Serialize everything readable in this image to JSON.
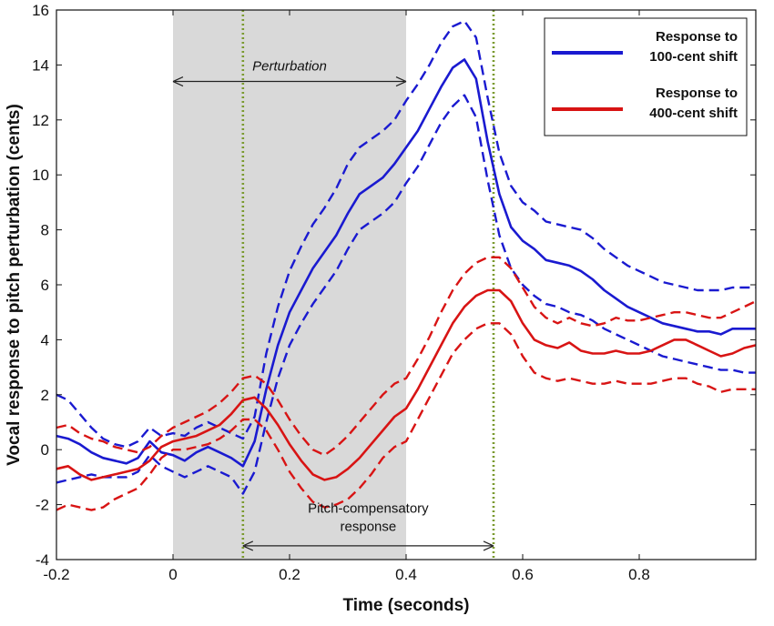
{
  "chart_data": {
    "type": "line",
    "xlabel": "Time (seconds)",
    "ylabel": "Vocal response to pitch perturbation (cents)",
    "xlim": [
      -0.2,
      1.0
    ],
    "ylim": [
      -4,
      16
    ],
    "xticks": [
      -0.2,
      0,
      0.2,
      0.4,
      0.6,
      0.8
    ],
    "xtick_labels": [
      "-0.2",
      "0",
      "0.2",
      "0.4",
      "0.6",
      "0.8"
    ],
    "yticks": [
      -4,
      -2,
      0,
      2,
      4,
      6,
      8,
      10,
      12,
      14,
      16
    ],
    "ytick_labels": [
      "-4",
      "-2",
      "0",
      "2",
      "4",
      "6",
      "8",
      "10",
      "12",
      "14",
      "16"
    ],
    "grid": false,
    "legend_position": "top-right",
    "shaded_region": {
      "x": [
        0,
        0.4
      ],
      "color": "#d9d9d9"
    },
    "vertical_lines": [
      {
        "x": 0.12,
        "style": "dotted",
        "color": "#7a9a2e"
      },
      {
        "x": 0.55,
        "style": "dotted",
        "color": "#7a9a2e"
      }
    ],
    "annotations": [
      {
        "text": "Perturbation",
        "italic": true,
        "x": 0.2,
        "y": 13.8,
        "arrow_from": 0,
        "arrow_to": 0.4,
        "arrow_y": 13.4
      },
      {
        "text_lines": [
          "Pitch-compensatory",
          "response"
        ],
        "x": 0.335,
        "y": -2.3,
        "arrow_from": 0.12,
        "arrow_to": 0.55,
        "arrow_y": -3.5
      }
    ],
    "series": [
      {
        "name": "Response to 100-cent shift",
        "legend_lines": [
          "Response to",
          "100-cent shift"
        ],
        "color": "#1a1ad0",
        "x": [
          -0.2,
          -0.18,
          -0.16,
          -0.14,
          -0.12,
          -0.1,
          -0.08,
          -0.06,
          -0.04,
          -0.02,
          0,
          0.02,
          0.04,
          0.06,
          0.08,
          0.1,
          0.12,
          0.14,
          0.16,
          0.18,
          0.2,
          0.22,
          0.24,
          0.26,
          0.28,
          0.3,
          0.32,
          0.34,
          0.36,
          0.38,
          0.4,
          0.42,
          0.44,
          0.46,
          0.48,
          0.5,
          0.52,
          0.54,
          0.56,
          0.58,
          0.6,
          0.62,
          0.64,
          0.66,
          0.68,
          0.7,
          0.72,
          0.74,
          0.76,
          0.78,
          0.8,
          0.82,
          0.84,
          0.86,
          0.88,
          0.9,
          0.92,
          0.94,
          0.96,
          0.98,
          1.0
        ],
        "mean": [
          0.5,
          0.4,
          0.2,
          -0.1,
          -0.3,
          -0.4,
          -0.5,
          -0.3,
          0.3,
          -0.1,
          -0.2,
          -0.4,
          -0.1,
          0.1,
          -0.1,
          -0.3,
          -0.6,
          0.3,
          2.2,
          3.8,
          5.0,
          5.8,
          6.6,
          7.2,
          7.8,
          8.6,
          9.3,
          9.6,
          9.9,
          10.4,
          11.0,
          11.6,
          12.4,
          13.2,
          13.9,
          14.2,
          13.5,
          11.2,
          9.3,
          8.1,
          7.6,
          7.3,
          6.9,
          6.8,
          6.7,
          6.5,
          6.2,
          5.8,
          5.5,
          5.2,
          5.0,
          4.8,
          4.6,
          4.5,
          4.4,
          4.3,
          4.3,
          4.2,
          4.4,
          4.4,
          4.4
        ],
        "upper": [
          2.0,
          1.8,
          1.3,
          0.8,
          0.4,
          0.2,
          0.1,
          0.3,
          0.8,
          0.5,
          0.6,
          0.5,
          0.8,
          1.0,
          0.8,
          0.6,
          0.4,
          1.2,
          3.5,
          5.2,
          6.5,
          7.4,
          8.2,
          8.8,
          9.5,
          10.4,
          11.0,
          11.3,
          11.6,
          12.0,
          12.7,
          13.3,
          14.0,
          14.8,
          15.4,
          15.6,
          15.0,
          12.8,
          10.8,
          9.6,
          9.0,
          8.7,
          8.3,
          8.2,
          8.1,
          8.0,
          7.7,
          7.3,
          7.0,
          6.7,
          6.5,
          6.3,
          6.1,
          6.0,
          5.9,
          5.8,
          5.8,
          5.8,
          5.9,
          5.9,
          5.9
        ],
        "lower": [
          -1.2,
          -1.1,
          -1.0,
          -0.9,
          -1.0,
          -1.0,
          -1.0,
          -0.8,
          -0.2,
          -0.6,
          -0.8,
          -1.0,
          -0.8,
          -0.6,
          -0.8,
          -1.0,
          -1.6,
          -0.8,
          1.0,
          2.6,
          3.8,
          4.6,
          5.3,
          5.9,
          6.5,
          7.3,
          8.0,
          8.3,
          8.6,
          9.0,
          9.7,
          10.3,
          11.1,
          11.9,
          12.5,
          12.9,
          12.1,
          9.8,
          7.8,
          6.6,
          6.0,
          5.6,
          5.3,
          5.2,
          5.0,
          4.9,
          4.7,
          4.4,
          4.2,
          4.0,
          3.8,
          3.6,
          3.4,
          3.3,
          3.2,
          3.1,
          3.0,
          2.9,
          2.9,
          2.8,
          2.8
        ]
      },
      {
        "name": "Response to 400-cent shift",
        "legend_lines": [
          "Response to",
          "400-cent shift"
        ],
        "color": "#d81414",
        "x": [
          -0.2,
          -0.18,
          -0.16,
          -0.14,
          -0.12,
          -0.1,
          -0.08,
          -0.06,
          -0.04,
          -0.02,
          0,
          0.02,
          0.04,
          0.06,
          0.08,
          0.1,
          0.12,
          0.14,
          0.16,
          0.18,
          0.2,
          0.22,
          0.24,
          0.26,
          0.28,
          0.3,
          0.32,
          0.34,
          0.36,
          0.38,
          0.4,
          0.42,
          0.44,
          0.46,
          0.48,
          0.5,
          0.52,
          0.54,
          0.56,
          0.58,
          0.6,
          0.62,
          0.64,
          0.66,
          0.68,
          0.7,
          0.72,
          0.74,
          0.76,
          0.78,
          0.8,
          0.82,
          0.84,
          0.86,
          0.88,
          0.9,
          0.92,
          0.94,
          0.96,
          0.98,
          1.0
        ],
        "mean": [
          -0.7,
          -0.6,
          -0.9,
          -1.1,
          -1.0,
          -0.9,
          -0.8,
          -0.7,
          -0.4,
          0.1,
          0.3,
          0.4,
          0.5,
          0.7,
          0.9,
          1.3,
          1.8,
          1.9,
          1.5,
          0.9,
          0.2,
          -0.4,
          -0.9,
          -1.1,
          -1.0,
          -0.7,
          -0.3,
          0.2,
          0.7,
          1.2,
          1.5,
          2.2,
          3.0,
          3.8,
          4.6,
          5.2,
          5.6,
          5.8,
          5.8,
          5.4,
          4.6,
          4.0,
          3.8,
          3.7,
          3.9,
          3.6,
          3.5,
          3.5,
          3.6,
          3.5,
          3.5,
          3.6,
          3.8,
          4.0,
          4.0,
          3.8,
          3.6,
          3.4,
          3.5,
          3.7,
          3.8
        ],
        "upper": [
          0.8,
          0.9,
          0.6,
          0.4,
          0.3,
          0.1,
          0.0,
          -0.1,
          0.1,
          0.5,
          0.8,
          1.0,
          1.2,
          1.4,
          1.7,
          2.1,
          2.6,
          2.7,
          2.4,
          1.8,
          1.1,
          0.5,
          0.0,
          -0.2,
          0.1,
          0.5,
          1.0,
          1.5,
          2.0,
          2.4,
          2.6,
          3.3,
          4.1,
          5.0,
          5.8,
          6.4,
          6.8,
          7.0,
          7.0,
          6.6,
          5.9,
          5.2,
          4.8,
          4.6,
          4.8,
          4.6,
          4.5,
          4.6,
          4.8,
          4.7,
          4.7,
          4.8,
          4.9,
          5.0,
          5.0,
          4.9,
          4.8,
          4.8,
          5.0,
          5.2,
          5.4
        ],
        "lower": [
          -2.2,
          -2.0,
          -2.1,
          -2.2,
          -2.1,
          -1.8,
          -1.6,
          -1.4,
          -0.9,
          -0.3,
          0.0,
          0.0,
          0.1,
          0.2,
          0.4,
          0.7,
          1.1,
          1.1,
          0.7,
          0.0,
          -0.8,
          -1.4,
          -1.9,
          -2.1,
          -2.0,
          -1.8,
          -1.4,
          -0.9,
          -0.3,
          0.1,
          0.3,
          1.1,
          1.9,
          2.7,
          3.5,
          4.0,
          4.4,
          4.6,
          4.6,
          4.2,
          3.4,
          2.8,
          2.6,
          2.5,
          2.6,
          2.5,
          2.4,
          2.4,
          2.5,
          2.4,
          2.4,
          2.4,
          2.5,
          2.6,
          2.6,
          2.4,
          2.3,
          2.1,
          2.2,
          2.2,
          2.2
        ]
      }
    ]
  }
}
